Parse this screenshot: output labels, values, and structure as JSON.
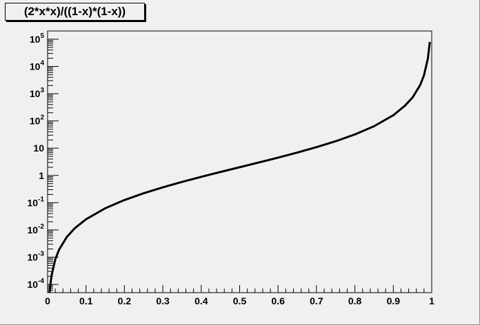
{
  "chart_data": {
    "type": "line",
    "title": "(2*x*x)/((1-x)*(1-x))",
    "xlabel": "",
    "ylabel": "",
    "xlim": [
      0,
      1
    ],
    "ylim": [
      5e-05,
      200000
    ],
    "y_scale": "log",
    "grid": false,
    "legend": "none",
    "line_color": "#000000",
    "x_tick_labels": [
      "0",
      "0.1",
      "0.2",
      "0.3",
      "0.4",
      "0.5",
      "0.6",
      "0.7",
      "0.8",
      "0.9",
      "1"
    ],
    "x_tick_values": [
      0,
      0.1,
      0.2,
      0.3,
      0.4,
      0.5,
      0.6,
      0.7,
      0.8,
      0.9,
      1
    ],
    "y_ticks": [
      {
        "value": 0.0001,
        "base": "10",
        "exp": "-4"
      },
      {
        "value": 0.001,
        "base": "10",
        "exp": "-3"
      },
      {
        "value": 0.01,
        "base": "10",
        "exp": "-2"
      },
      {
        "value": 0.1,
        "base": "10",
        "exp": "-1"
      },
      {
        "value": 1,
        "base": "1",
        "exp": ""
      },
      {
        "value": 10,
        "base": "10",
        "exp": ""
      },
      {
        "value": 100,
        "base": "10",
        "exp": "2"
      },
      {
        "value": 1000,
        "base": "10",
        "exp": "3"
      },
      {
        "value": 10000,
        "base": "10",
        "exp": "4"
      },
      {
        "value": 100000,
        "base": "10",
        "exp": "5"
      }
    ],
    "series": [
      {
        "x": [
          0.005,
          0.01,
          0.02,
          0.03,
          0.05,
          0.07,
          0.1,
          0.15,
          0.2,
          0.25,
          0.3,
          0.35,
          0.4,
          0.45,
          0.5,
          0.55,
          0.6,
          0.65,
          0.7,
          0.75,
          0.8,
          0.85,
          0.9,
          0.93,
          0.95,
          0.97,
          0.98,
          0.99,
          0.995
        ],
        "y": [
          5e-05,
          0.0002,
          0.00083,
          0.0019,
          0.0055,
          0.0113,
          0.0247,
          0.0623,
          0.125,
          0.222,
          0.367,
          0.58,
          0.889,
          1.34,
          2,
          2.99,
          4.5,
          6.9,
          10.9,
          18,
          32,
          64.2,
          162,
          360,
          722,
          2078,
          4802,
          19602,
          79202
        ]
      }
    ]
  }
}
